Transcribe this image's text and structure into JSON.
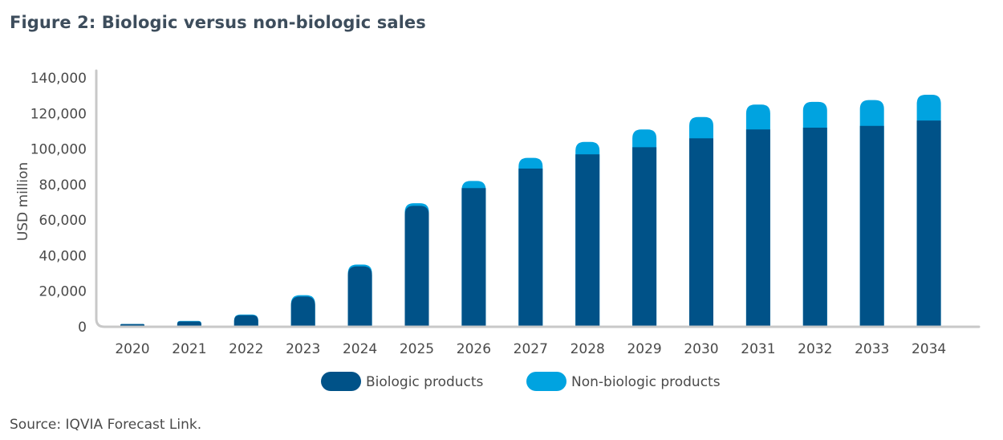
{
  "figure_title": "Figure 2: Biologic versus non-biologic sales",
  "source": "Source: IQVIA Forecast Link.",
  "colors": {
    "biologic": "#005288",
    "non_biologic": "#00a3e0",
    "axis": "#c8c8c8"
  },
  "chart_data": {
    "type": "bar",
    "stacked": true,
    "title": "Figure 2: Biologic versus non-biologic sales",
    "xlabel": "",
    "ylabel": "USD million",
    "ylim": [
      0,
      140000
    ],
    "yticks": [
      0,
      20000,
      40000,
      60000,
      80000,
      100000,
      120000,
      140000
    ],
    "ytick_labels": [
      "0",
      "20,000",
      "40,000",
      "60,000",
      "80,000",
      "100,000",
      "120,000",
      "140,000"
    ],
    "categories": [
      "2020",
      "2021",
      "2022",
      "2023",
      "2024",
      "2025",
      "2026",
      "2027",
      "2028",
      "2029",
      "2030",
      "2031",
      "2032",
      "2033",
      "2034"
    ],
    "series": [
      {
        "name": "Biologic products",
        "values": [
          1500,
          3000,
          6500,
          17000,
          34000,
          68000,
          78000,
          89000,
          97000,
          101000,
          106000,
          111000,
          112000,
          113000,
          116000
        ]
      },
      {
        "name": "Non-biologic products",
        "values": [
          100,
          300,
          400,
          800,
          1000,
          1500,
          4000,
          6000,
          7000,
          10000,
          12000,
          14000,
          14500,
          14500,
          14500
        ]
      }
    ],
    "legend": {
      "position": "bottom-center"
    },
    "grid": false
  }
}
